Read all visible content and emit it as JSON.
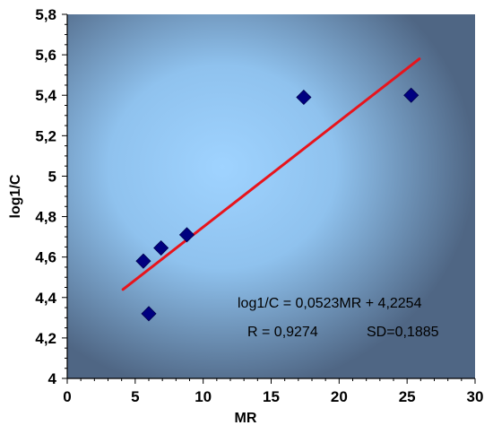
{
  "chart_data": {
    "type": "scatter",
    "title": "",
    "xlabel": "MR",
    "ylabel": "log1/C",
    "xlim": [
      0,
      30
    ],
    "ylim": [
      4,
      5.8
    ],
    "x_ticks": [
      0,
      5,
      10,
      15,
      20,
      25,
      30
    ],
    "x_tick_labels": [
      "0",
      "5",
      "10",
      "15",
      "20",
      "25",
      "30"
    ],
    "y_ticks": [
      4,
      4.2,
      4.4,
      4.6,
      4.8,
      5,
      5.2,
      5.4,
      5.6,
      5.8
    ],
    "y_tick_labels": [
      "4",
      "4,2",
      "4,4",
      "4,6",
      "4,8",
      "5",
      "5,2",
      "5,4",
      "5,6",
      "5,8"
    ],
    "grid": false,
    "legend": "none",
    "series": [
      {
        "marker": "diamond",
        "color": "#000080",
        "x": [
          5.6,
          6.0,
          6.9,
          8.8,
          17.4,
          25.3
        ],
        "y": [
          4.58,
          4.32,
          4.645,
          4.71,
          5.39,
          5.4
        ]
      }
    ],
    "trendline": {
      "color": "#e8141c",
      "slope": 0.0523,
      "intercept": 4.2254,
      "x_start": 4.1,
      "x_end": 25.9
    },
    "annotations": [
      "log1/C = 0,0523MR + 4,2254",
      "R = 0,9274",
      "SD=0,1885"
    ]
  },
  "colors": {
    "plot_background_light": "#9fd3ff",
    "plot_background_dark": "#4f6684",
    "marker": "#000080",
    "trendline": "#e8141c"
  }
}
